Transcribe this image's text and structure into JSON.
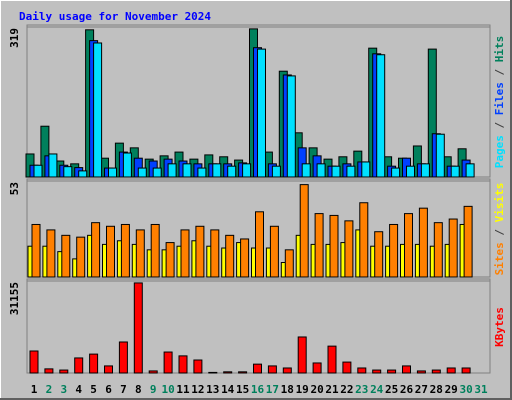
{
  "chart_data": [
    {
      "type": "bar",
      "title": "Daily usage for November 2024",
      "ylim": [
        0,
        319
      ],
      "yticks": [
        319
      ],
      "legend_separator": " / ",
      "series": [
        {
          "name": "Hits",
          "color": "#00805c",
          "values": [
            49,
            108,
            34,
            28,
            313,
            40,
            72,
            62,
            38,
            45,
            53,
            38,
            47,
            43,
            36,
            315,
            53,
            225,
            94,
            62,
            38,
            43,
            55,
            274,
            43,
            40,
            66,
            272,
            43,
            60,
            null
          ]
        },
        {
          "name": "Files",
          "color": "#0040ff",
          "values": [
            25,
            45,
            25,
            20,
            290,
            19,
            53,
            40,
            34,
            38,
            34,
            28,
            28,
            28,
            30,
            275,
            28,
            217,
            62,
            45,
            23,
            28,
            32,
            262,
            23,
            40,
            28,
            92,
            23,
            36,
            null
          ]
        },
        {
          "name": "Pages",
          "color": "#00e0ff",
          "values": [
            25,
            49,
            22,
            13,
            285,
            19,
            51,
            19,
            19,
            28,
            28,
            19,
            28,
            23,
            28,
            272,
            23,
            215,
            28,
            28,
            23,
            23,
            32,
            260,
            19,
            23,
            28,
            91,
            23,
            28,
            null
          ]
        }
      ]
    },
    {
      "type": "bar",
      "ylim": [
        0,
        53
      ],
      "yticks": [
        53
      ],
      "legend_separator": " / ",
      "series": [
        {
          "name": "Visits",
          "color": "#ffff00",
          "values": [
            17,
            17,
            14,
            10,
            23,
            18,
            20,
            18,
            15,
            15,
            17,
            20,
            17,
            16,
            19,
            16,
            16,
            8,
            23,
            18,
            18,
            19,
            26,
            17,
            17,
            18,
            18,
            17,
            18,
            29,
            null
          ]
        },
        {
          "name": "Sites",
          "color": "#ff8000",
          "values": [
            29,
            26,
            23,
            22,
            30,
            28,
            29,
            26,
            29,
            19,
            26,
            28,
            26,
            23,
            21,
            36,
            28,
            15,
            51,
            35,
            34,
            31,
            41,
            25,
            29,
            35,
            38,
            30,
            32,
            39,
            null
          ]
        }
      ]
    },
    {
      "type": "bar",
      "ylim": [
        0,
        31155
      ],
      "yticks": [
        31155
      ],
      "categories": [
        "1",
        "2",
        "3",
        "4",
        "5",
        "6",
        "7",
        "8",
        "9",
        "10",
        "11",
        "12",
        "13",
        "14",
        "15",
        "16",
        "17",
        "18",
        "19",
        "20",
        "21",
        "22",
        "23",
        "24",
        "25",
        "26",
        "27",
        "28",
        "29",
        "30",
        "31"
      ],
      "category_colors": [
        "#000000",
        "#00805c",
        "#00805c",
        "#000000",
        "#000000",
        "#000000",
        "#000000",
        "#000000",
        "#00805c",
        "#00805c",
        "#000000",
        "#000000",
        "#000000",
        "#000000",
        "#000000",
        "#00805c",
        "#00805c",
        "#000000",
        "#000000",
        "#000000",
        "#000000",
        "#000000",
        "#00805c",
        "#00805c",
        "#000000",
        "#000000",
        "#000000",
        "#000000",
        "#000000",
        "#00805c",
        "#00805c"
      ],
      "series": [
        {
          "name": "KBytes",
          "color": "#ff0000",
          "values": [
            7450,
            1400,
            1000,
            5100,
            6400,
            2400,
            10500,
            30500,
            700,
            7100,
            5800,
            4400,
            200,
            400,
            400,
            3000,
            2400,
            1700,
            12200,
            3400,
            9100,
            3700,
            1700,
            1000,
            1000,
            2400,
            700,
            1000,
            1700,
            1700,
            null
          ]
        }
      ]
    }
  ]
}
